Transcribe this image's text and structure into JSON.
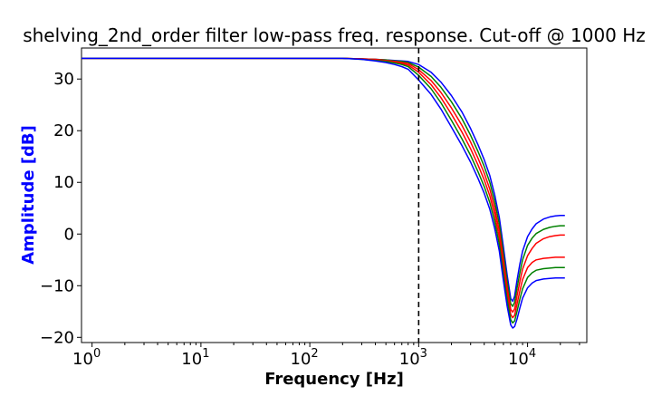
{
  "chart_data": {
    "type": "line",
    "title": "shelving_2nd_order filter low-pass freq. response. Cut-off @ 1000 Hz",
    "xlabel": "Frequency [Hz]",
    "ylabel": "Amplitude [dB]",
    "xscale": "log",
    "xlim": [
      0.8,
      35000
    ],
    "ylim": [
      -21,
      36
    ],
    "grid": false,
    "x_ticks": [
      {
        "value": 1,
        "label": "10^0"
      },
      {
        "value": 10,
        "label": "10^1"
      },
      {
        "value": 100,
        "label": "10^2"
      },
      {
        "value": 1000,
        "label": "10^3"
      },
      {
        "value": 10000,
        "label": "10^4"
      }
    ],
    "y_ticks": [
      {
        "value": 30,
        "label": "30"
      },
      {
        "value": 20,
        "label": "20"
      },
      {
        "value": 10,
        "label": "10"
      },
      {
        "value": 0,
        "label": "0"
      },
      {
        "value": -10,
        "label": "−10"
      },
      {
        "value": -20,
        "label": "−20"
      }
    ],
    "vline": {
      "x": 1000,
      "style": "dashed",
      "color": "#000000"
    },
    "x": [
      0.8,
      10,
      100,
      200,
      300,
      400,
      500,
      600,
      700,
      800,
      1000,
      1300,
      1600,
      2000,
      2500,
      3000,
      3500,
      4000,
      4500,
      5000,
      5500,
      6000,
      6500,
      7000,
      7300,
      7600,
      8000,
      8500,
      9000,
      10000,
      11000,
      12000,
      14000,
      16000,
      18000,
      20000,
      22000
    ],
    "series": [
      {
        "color": "#0000ff",
        "values": [
          34.0,
          34.0,
          34.0,
          34.0,
          33.9,
          33.8,
          33.7,
          33.6,
          33.5,
          33.4,
          32.8,
          31.3,
          29.4,
          26.8,
          23.6,
          20.4,
          17.3,
          14.4,
          11.3,
          7.5,
          3.2,
          -2.5,
          -8.0,
          -12.5,
          -13.0,
          -12.0,
          -9.0,
          -5.8,
          -3.3,
          -0.5,
          1.0,
          2.0,
          2.9,
          3.3,
          3.5,
          3.6,
          3.6
        ]
      },
      {
        "color": "#008000",
        "values": [
          34.0,
          34.0,
          34.0,
          34.0,
          33.9,
          33.8,
          33.7,
          33.5,
          33.4,
          33.2,
          32.3,
          30.5,
          28.4,
          25.6,
          22.3,
          19.1,
          16.0,
          13.1,
          10.0,
          6.2,
          1.9,
          -3.8,
          -9.2,
          -13.5,
          -14.0,
          -13.2,
          -10.5,
          -7.5,
          -5.0,
          -2.2,
          -0.8,
          0.1,
          0.9,
          1.3,
          1.5,
          1.6,
          1.6
        ]
      },
      {
        "color": "#ff0000",
        "values": [
          34.0,
          34.0,
          34.0,
          34.0,
          33.9,
          33.8,
          33.6,
          33.4,
          33.2,
          33.0,
          31.8,
          29.7,
          27.4,
          24.4,
          21.0,
          17.8,
          14.7,
          11.8,
          8.7,
          4.9,
          0.6,
          -5.1,
          -10.4,
          -14.6,
          -15.1,
          -14.5,
          -12.0,
          -9.2,
          -6.8,
          -4.2,
          -2.8,
          -1.8,
          -0.9,
          -0.5,
          -0.3,
          -0.2,
          -0.2
        ]
      },
      {
        "color": "#ff0000",
        "values": [
          34.0,
          34.0,
          34.0,
          34.0,
          33.9,
          33.7,
          33.5,
          33.3,
          33.0,
          32.7,
          31.3,
          28.9,
          26.4,
          23.2,
          19.7,
          16.5,
          13.4,
          10.5,
          7.4,
          3.6,
          -0.7,
          -6.4,
          -11.6,
          -15.6,
          -16.2,
          -15.7,
          -13.6,
          -11.0,
          -8.8,
          -6.5,
          -5.5,
          -5.0,
          -4.7,
          -4.6,
          -4.5,
          -4.5,
          -4.5
        ]
      },
      {
        "color": "#008000",
        "values": [
          34.0,
          34.0,
          34.0,
          34.0,
          33.8,
          33.6,
          33.4,
          33.1,
          32.8,
          32.4,
          30.7,
          28.1,
          25.4,
          22.0,
          18.4,
          15.2,
          12.1,
          9.2,
          6.1,
          2.3,
          -2.0,
          -7.7,
          -12.8,
          -16.6,
          -17.2,
          -16.8,
          -15.0,
          -12.6,
          -10.6,
          -8.4,
          -7.5,
          -7.0,
          -6.7,
          -6.6,
          -6.5,
          -6.5,
          -6.5
        ]
      },
      {
        "color": "#0000ff",
        "values": [
          34.0,
          34.0,
          34.0,
          34.0,
          33.8,
          33.5,
          33.2,
          32.8,
          32.4,
          31.9,
          29.8,
          27.0,
          24.2,
          20.7,
          17.1,
          13.9,
          10.8,
          7.9,
          4.8,
          1.0,
          -3.3,
          -9.0,
          -14.0,
          -17.6,
          -18.2,
          -17.9,
          -16.5,
          -14.3,
          -12.4,
          -10.4,
          -9.5,
          -9.0,
          -8.7,
          -8.6,
          -8.5,
          -8.5,
          -8.5
        ]
      }
    ]
  }
}
